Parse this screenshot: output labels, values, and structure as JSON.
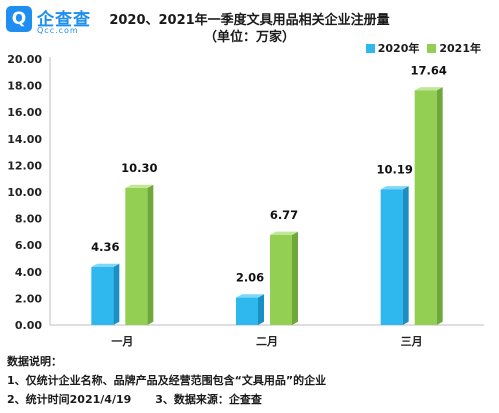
{
  "logo": {
    "name": "企查查",
    "domain": "Qcc.com"
  },
  "colors": {
    "s2020_front": "#2eb8ee",
    "s2020_side": "#1a8fc4",
    "s2020_top": "#7fd6f7",
    "s2021_front": "#92cf52",
    "s2021_side": "#6ea83a",
    "s2021_top": "#c2e79a",
    "axis": "#bfbfbf",
    "grid": "#ececec",
    "logo": "#1e8ef0"
  },
  "chart_data": {
    "type": "bar",
    "title": "2020、2021年一季度文具用品相关企业注册量",
    "subtitle": "（单位：万家）",
    "categories": [
      "一月",
      "二月",
      "三月"
    ],
    "series": [
      {
        "name": "2020年",
        "values": [
          4.36,
          2.06,
          10.19
        ],
        "labels": [
          "4.36",
          "2.06",
          "10.19"
        ]
      },
      {
        "name": "2021年",
        "values": [
          10.3,
          6.77,
          17.64
        ],
        "labels": [
          "10.30",
          "6.77",
          "17.64"
        ]
      }
    ],
    "ylim": [
      0,
      20
    ],
    "yticks": [
      "0.00",
      "2.00",
      "4.00",
      "6.00",
      "8.00",
      "10.00",
      "12.00",
      "14.00",
      "16.00",
      "18.00",
      "20.00"
    ],
    "legend_position": "top-right",
    "grid": false
  },
  "notes": {
    "heading": "数据说明：",
    "line1": "1、仅统计企业名称、品牌产品及经营范围包含“文具用品”的企业",
    "line2a": "2、统计时间2021/4/19",
    "line2b": "3、数据来源：企查查"
  }
}
